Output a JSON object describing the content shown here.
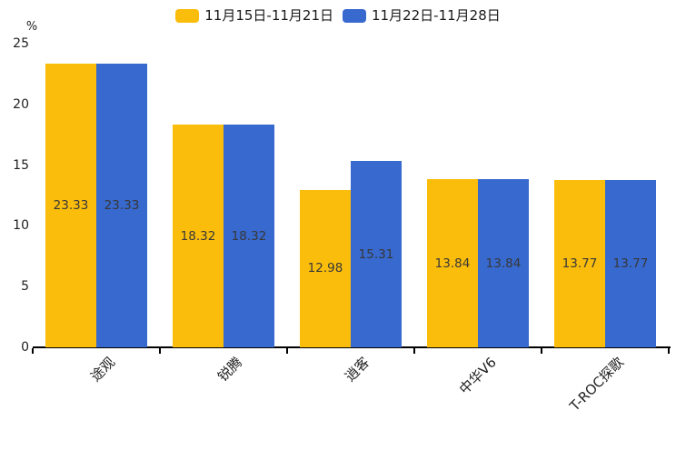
{
  "chart_data": {
    "type": "bar",
    "categories": [
      "途观",
      "锐腾",
      "逍客",
      "中华V6",
      "T-ROC探歌"
    ],
    "series": [
      {
        "name": "11月15日-11月21日",
        "color": "#FBBD0B",
        "values": [
          23.33,
          18.32,
          12.98,
          13.84,
          13.77
        ]
      },
      {
        "name": "11月22日-11月28日",
        "color": "#3769CE",
        "values": [
          23.33,
          18.32,
          15.31,
          13.84,
          13.77
        ]
      }
    ],
    "title": "",
    "xlabel": "",
    "ylabel": "%",
    "ylim": [
      0,
      25
    ],
    "yticks": [
      0,
      5,
      10,
      15,
      20,
      25
    ],
    "grid": false,
    "legend_position": "top-center",
    "value_labels_inside_bars": true,
    "colors": {
      "axis": "#000000",
      "tick_text": "#1f1f1f",
      "bar_value_text": "#383838",
      "background": "#ffffff"
    }
  }
}
